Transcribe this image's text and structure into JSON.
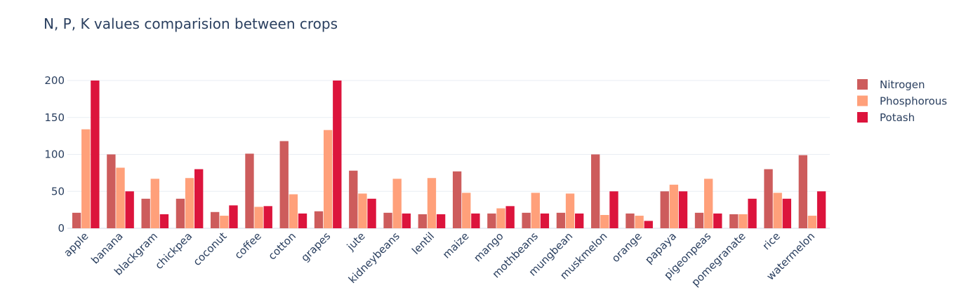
{
  "chart_data": {
    "type": "bar",
    "title": "N, P, K values comparision between crops",
    "xlabel": "",
    "ylabel": "",
    "ylim": [
      0,
      215
    ],
    "yticks": [
      0,
      50,
      100,
      150,
      200
    ],
    "grid": true,
    "legend_position": "top-right",
    "categories": [
      "apple",
      "banana",
      "blackgram",
      "chickpea",
      "coconut",
      "coffee",
      "cotton",
      "grapes",
      "jute",
      "kidneybeans",
      "lentil",
      "maize",
      "mango",
      "mothbeans",
      "mungbean",
      "muskmelon",
      "orange",
      "papaya",
      "pigeonpeas",
      "pomegranate",
      "rice",
      "watermelon"
    ],
    "series": [
      {
        "name": "Nitrogen",
        "color": "#cd5c5c",
        "values": [
          21,
          100,
          40,
          40,
          22,
          101,
          118,
          23,
          78,
          21,
          19,
          77,
          20,
          21,
          21,
          100,
          20,
          50,
          21,
          19,
          80,
          99
        ]
      },
      {
        "name": "Phosphorous",
        "color": "#ffa07a",
        "values": [
          134,
          82,
          67,
          68,
          17,
          29,
          46,
          133,
          47,
          67,
          68,
          48,
          27,
          48,
          47,
          18,
          17,
          59,
          67,
          19,
          48,
          17
        ]
      },
      {
        "name": "Potash",
        "color": "#dc143c",
        "values": [
          200,
          50,
          19,
          80,
          31,
          30,
          20,
          200,
          40,
          20,
          19,
          20,
          30,
          20,
          20,
          50,
          10,
          50,
          20,
          40,
          40,
          50
        ]
      }
    ]
  }
}
